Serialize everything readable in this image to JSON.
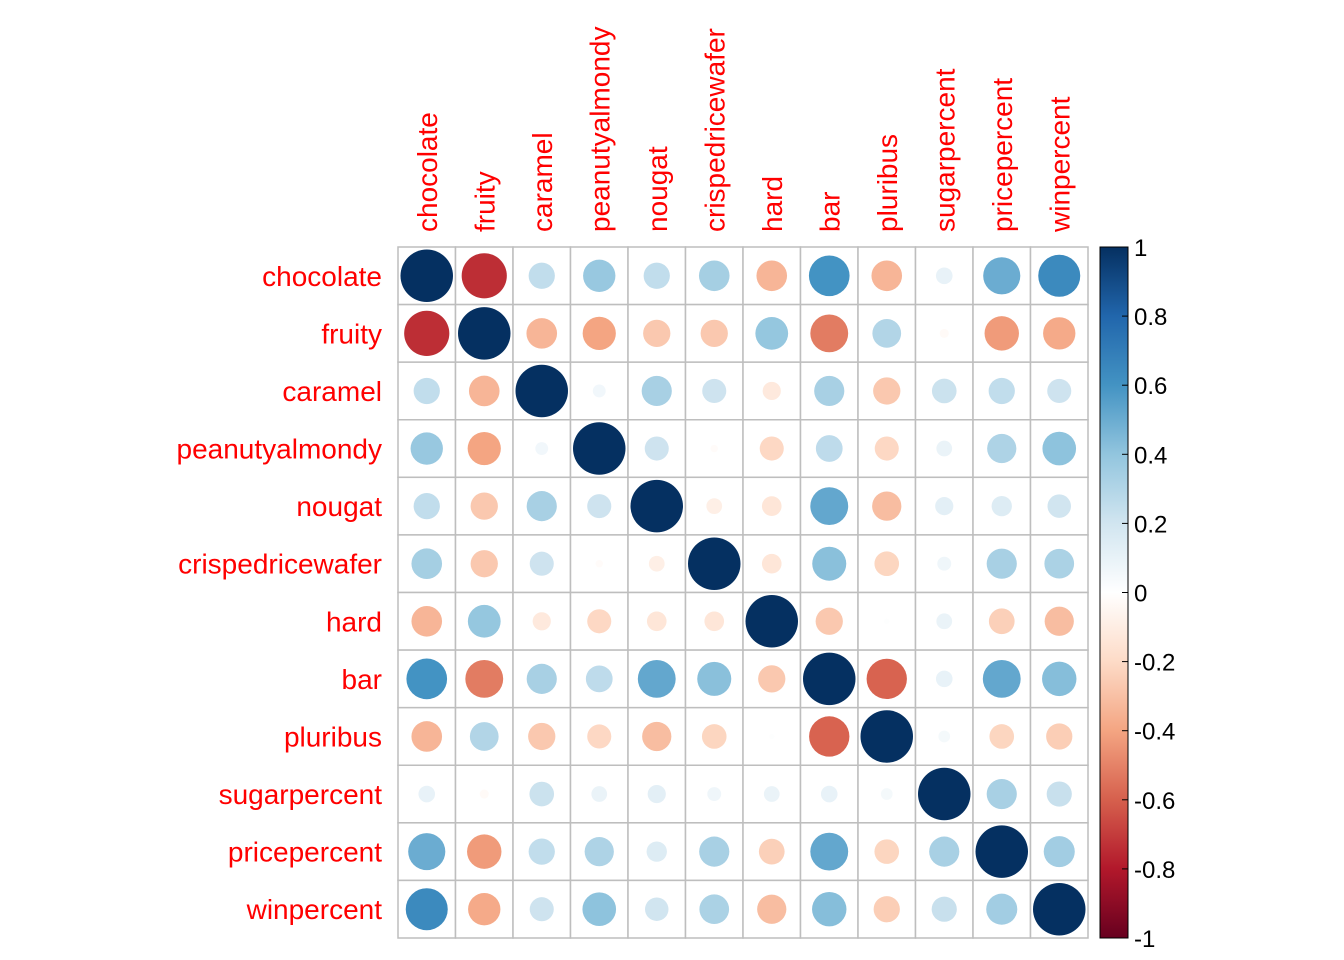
{
  "chart_data": {
    "type": "heatmap",
    "subtype": "corrplot-circle",
    "title": "",
    "variables": [
      "chocolate",
      "fruity",
      "caramel",
      "peanutyalmondy",
      "nougat",
      "crispedricewafer",
      "hard",
      "bar",
      "pluribus",
      "sugarpercent",
      "pricepercent",
      "winpercent"
    ],
    "matrix": [
      [
        1.0,
        -0.74,
        0.25,
        0.38,
        0.25,
        0.34,
        -0.34,
        0.6,
        -0.34,
        0.1,
        0.5,
        0.64
      ],
      [
        -0.74,
        1.0,
        -0.34,
        -0.4,
        -0.27,
        -0.27,
        0.39,
        -0.52,
        0.3,
        -0.03,
        -0.43,
        -0.38
      ],
      [
        0.25,
        -0.34,
        1.0,
        0.06,
        0.33,
        0.21,
        -0.12,
        0.33,
        -0.27,
        0.22,
        0.25,
        0.21
      ],
      [
        0.38,
        -0.4,
        0.06,
        1.0,
        0.21,
        -0.02,
        -0.21,
        0.26,
        -0.21,
        0.09,
        0.31,
        0.41
      ],
      [
        0.25,
        -0.27,
        0.33,
        0.21,
        1.0,
        -0.09,
        -0.14,
        0.52,
        -0.31,
        0.12,
        0.15,
        0.2
      ],
      [
        0.34,
        -0.27,
        0.21,
        -0.02,
        -0.09,
        1.0,
        -0.14,
        0.42,
        -0.22,
        0.07,
        0.33,
        0.32
      ],
      [
        -0.34,
        0.39,
        -0.12,
        -0.21,
        -0.14,
        -0.14,
        1.0,
        -0.27,
        0.01,
        0.09,
        -0.24,
        -0.31
      ],
      [
        0.6,
        -0.52,
        0.33,
        0.26,
        0.52,
        0.42,
        -0.27,
        1.0,
        -0.59,
        0.1,
        0.52,
        0.43
      ],
      [
        -0.34,
        0.3,
        -0.27,
        -0.21,
        -0.31,
        -0.22,
        0.01,
        -0.59,
        1.0,
        0.05,
        -0.22,
        -0.25
      ],
      [
        0.1,
        -0.03,
        0.22,
        0.09,
        0.12,
        0.07,
        0.09,
        0.1,
        0.05,
        1.0,
        0.33,
        0.23
      ],
      [
        0.5,
        -0.43,
        0.25,
        0.31,
        0.15,
        0.33,
        -0.24,
        0.52,
        -0.22,
        0.33,
        1.0,
        0.35
      ],
      [
        0.64,
        -0.38,
        0.21,
        0.41,
        0.2,
        0.32,
        -0.31,
        0.43,
        -0.25,
        0.23,
        0.35,
        1.0
      ]
    ],
    "colorbar": {
      "range": [
        -1,
        1
      ],
      "tick_labels": [
        "1",
        "0.8",
        "0.6",
        "0.4",
        "0.2",
        "0",
        "-0.2",
        "-0.4",
        "-0.6",
        "-0.8",
        "-1"
      ],
      "tick_values": [
        1,
        0.8,
        0.6,
        0.4,
        0.2,
        0,
        -0.2,
        -0.4,
        -0.6,
        -0.8,
        -1
      ],
      "palette": [
        "#67001F",
        "#B2182B",
        "#D6604D",
        "#F4A582",
        "#FDDBC7",
        "#FFFFFF",
        "#D1E5F0",
        "#92C5DE",
        "#4393C3",
        "#2166AC",
        "#053061"
      ]
    },
    "label_color": "#FF0000",
    "grid": true
  }
}
